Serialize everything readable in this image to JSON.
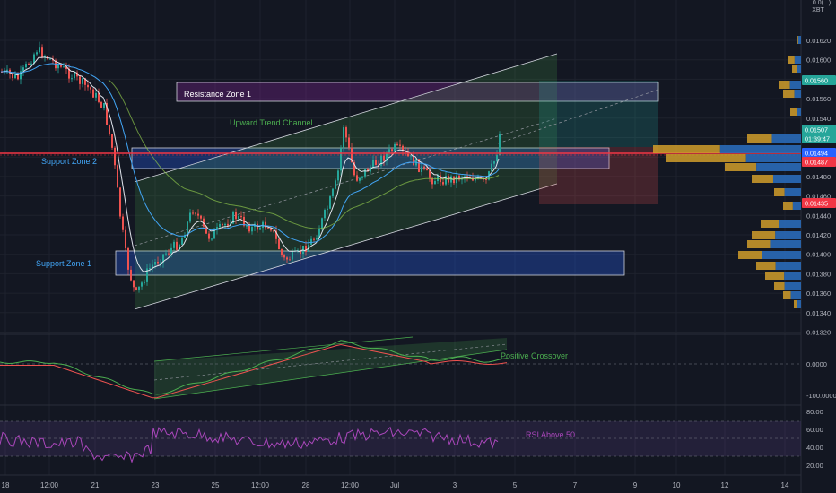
{
  "symbol": {
    "line1": "0.0(...)",
    "line2": "XBT"
  },
  "price_axis": {
    "ticks": [
      "0.01620",
      "0.01600",
      "0.01580",
      "0.01560",
      "0.01540",
      "0.01520",
      "0.01500",
      "0.01480",
      "0.01460",
      "0.01440",
      "0.01420",
      "0.01400",
      "0.01380",
      "0.01360",
      "0.01340",
      "0.01320"
    ],
    "tags": [
      {
        "label": "0.01560",
        "color": "#26a69a"
      },
      {
        "label": "0.01507",
        "color": "#26a69a"
      },
      {
        "label": "01:39:47",
        "color": "#26a69a"
      },
      {
        "label": "0.01494",
        "color": "#2962ff"
      },
      {
        "label": "0.01487",
        "color": "#f23645"
      },
      {
        "label": "0.01435",
        "color": "#f23645"
      }
    ]
  },
  "time_axis": [
    "18",
    "12:00",
    "21",
    "23",
    "25",
    "12:00",
    "28",
    "12:00",
    "Jul",
    "3",
    "5",
    "7",
    "9",
    "10",
    "12",
    "14"
  ],
  "annotations": {
    "resistance": "Resistance Zone 1",
    "support2": "Support Zone 2",
    "support1": "Support Zone 1",
    "trend": "Upward Trend Channel",
    "macd": "Positive Crossover",
    "rsi": "RSI Above 50"
  },
  "macd_axis": [
    "0.0000",
    "-100.0000"
  ],
  "rsi_axis": [
    "80.00",
    "60.00",
    "40.00",
    "20.00"
  ],
  "colors": {
    "bg": "#131722",
    "up": "#26a69a",
    "down": "#ef5350",
    "axis": "#b2b5be",
    "resistance": "#9c27b0",
    "support": "#2962ff",
    "channel": "#4caf50",
    "rsi": "#9c27b0",
    "last_price": "#f23645"
  }
}
